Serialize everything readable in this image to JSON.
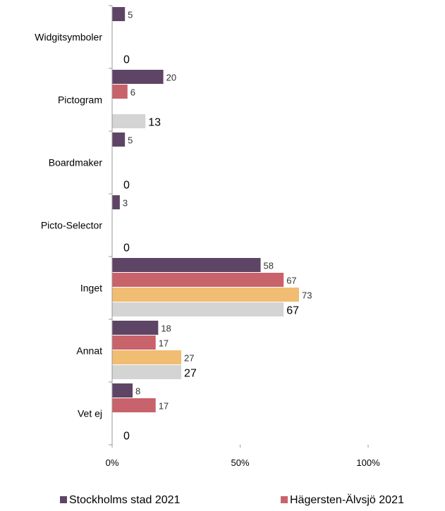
{
  "chart_data": {
    "type": "bar",
    "orientation": "horizontal",
    "categories": [
      "Widgitsymboler",
      "Pictogram",
      "Boardmaker",
      "Picto-Selector",
      "Inget",
      "Annat",
      "Vet ej"
    ],
    "series": [
      {
        "name": "Stockholms stad 2021",
        "color": "#5f4565",
        "values": [
          5,
          20,
          5,
          3,
          58,
          18,
          8
        ]
      },
      {
        "name": "Hägersten-Älvsjö 2021",
        "color": "#c8626b",
        "values": [
          null,
          6,
          null,
          null,
          67,
          17,
          17
        ]
      },
      {
        "name": "",
        "color": "#f0bd73",
        "values": [
          null,
          null,
          null,
          null,
          73,
          27,
          null
        ]
      },
      {
        "name": "",
        "color": "#d4d4d4",
        "values": [
          0,
          13,
          0,
          0,
          67,
          27,
          0
        ]
      }
    ],
    "xlim": [
      0,
      100
    ],
    "x_ticks": [
      "0%",
      "50%",
      "100%"
    ],
    "legend_position": "bottom",
    "grid": false
  }
}
